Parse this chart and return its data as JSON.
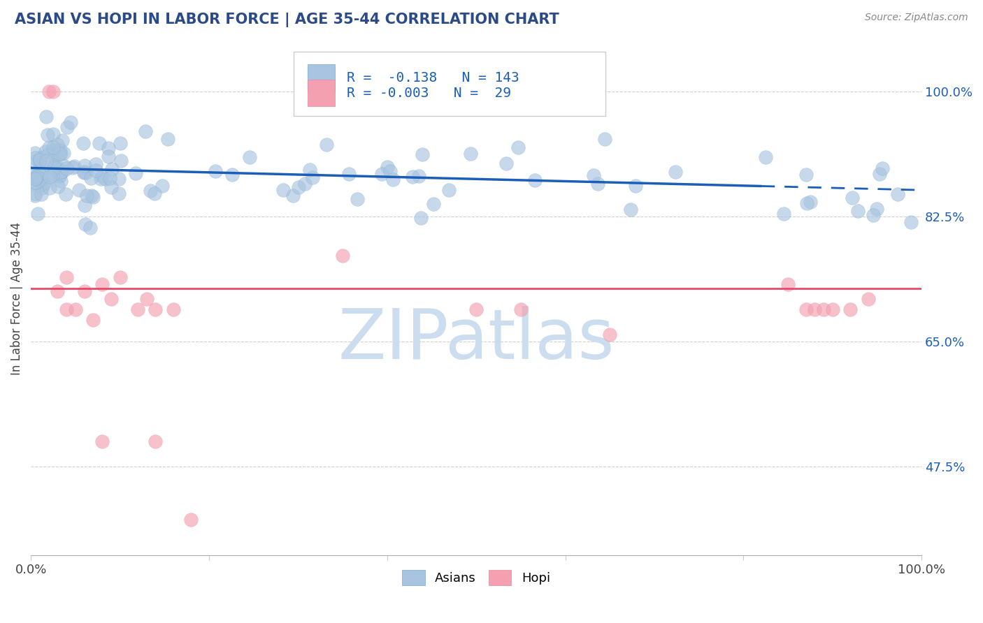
{
  "title": "ASIAN VS HOPI IN LABOR FORCE | AGE 35-44 CORRELATION CHART",
  "source": "Source: ZipAtlas.com",
  "ylabel": "In Labor Force | Age 35-44",
  "xlim": [
    0.0,
    1.0
  ],
  "ylim": [
    0.35,
    1.07
  ],
  "x_ticks": [
    0.0,
    0.2,
    0.4,
    0.6,
    0.8,
    1.0
  ],
  "x_tick_labels": [
    "0.0%",
    "",
    "",
    "",
    "",
    "100.0%"
  ],
  "y_tick_labels_right": [
    "100.0%",
    "82.5%",
    "65.0%",
    "47.5%"
  ],
  "y_tick_values_right": [
    1.0,
    0.825,
    0.65,
    0.475
  ],
  "gridline_y": [
    1.0,
    0.825,
    0.65,
    0.475
  ],
  "asian_color": "#a8c4e0",
  "hopi_color": "#f4a0b0",
  "asian_R": -0.138,
  "asian_N": 143,
  "hopi_R": -0.003,
  "hopi_N": 29,
  "trend_line_color_asian": "#1a5eb8",
  "trend_line_color_hopi": "#e84a6a",
  "background_color": "#ffffff",
  "title_color": "#2b4a8a",
  "legend_R_color": "#1a5eb8",
  "asian_trend_y_start": 0.893,
  "asian_trend_y_end": 0.862,
  "asian_trend_solid_end_x": 0.82,
  "hopi_trend_y": 0.724,
  "watermark": "ZIPatlas",
  "watermark_color": "#ccddf0",
  "watermark_fontsize": 72
}
